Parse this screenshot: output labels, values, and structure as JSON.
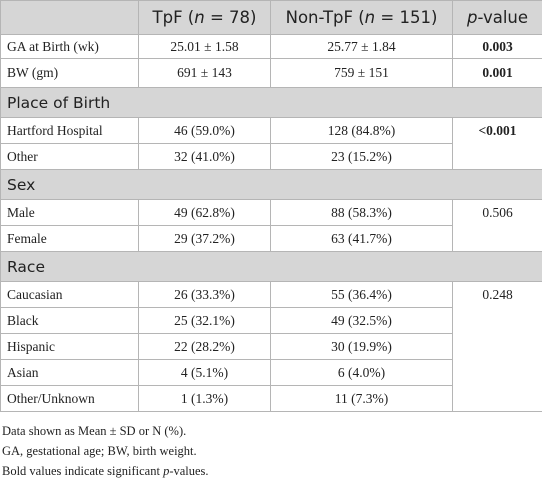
{
  "table": {
    "header": [
      {
        "pre": "TpF (",
        "italic": "n",
        "post": " = 78)"
      },
      {
        "pre": "Non-TpF (",
        "italic": "n",
        "post": " = 151)"
      },
      {
        "italic": "p",
        "post": "-value"
      }
    ],
    "top_rows": [
      {
        "cells": [
          "GA at Birth (wk)",
          "25.01 ± 1.58",
          "25.77 ± 1.84",
          "0.003"
        ],
        "bold_p": true
      },
      {
        "cells": [
          "BW (gm)",
          "691 ± 143",
          "759 ± 151",
          "0.001"
        ],
        "bold_p": true
      }
    ],
    "sections": [
      {
        "title": "Place of Birth",
        "p": "<0.001",
        "bold_p": true,
        "rows": [
          [
            "Hartford Hospital",
            "46 (59.0%)",
            "128 (84.8%)"
          ],
          [
            "Other",
            "32 (41.0%)",
            "23 (15.2%)"
          ]
        ]
      },
      {
        "title": "Sex",
        "p": "0.506",
        "bold_p": false,
        "rows": [
          [
            "Male",
            "49 (62.8%)",
            "88 (58.3%)"
          ],
          [
            "Female",
            "29 (37.2%)",
            "63 (41.7%)"
          ]
        ]
      },
      {
        "title": "Race",
        "p": "0.248",
        "bold_p": false,
        "rows": [
          [
            "Caucasian",
            "26 (33.3%)",
            "55 (36.4%)"
          ],
          [
            "Black",
            "25 (32.1%)",
            "49 (32.5%)"
          ],
          [
            "Hispanic",
            "22 (28.2%)",
            "30 (19.9%)"
          ],
          [
            "Asian",
            "4 (5.1%)",
            "6 (4.0%)"
          ],
          [
            "Other/Unknown",
            "1 (1.3%)",
            "11 (7.3%)"
          ]
        ]
      }
    ]
  },
  "footnotes": [
    {
      "text": "Data shown as Mean ± SD or N (%)."
    },
    {
      "text": "GA, gestational age; BW, birth weight."
    },
    {
      "pre": "Bold values indicate significant ",
      "italic": "p",
      "post": "-values."
    }
  ]
}
